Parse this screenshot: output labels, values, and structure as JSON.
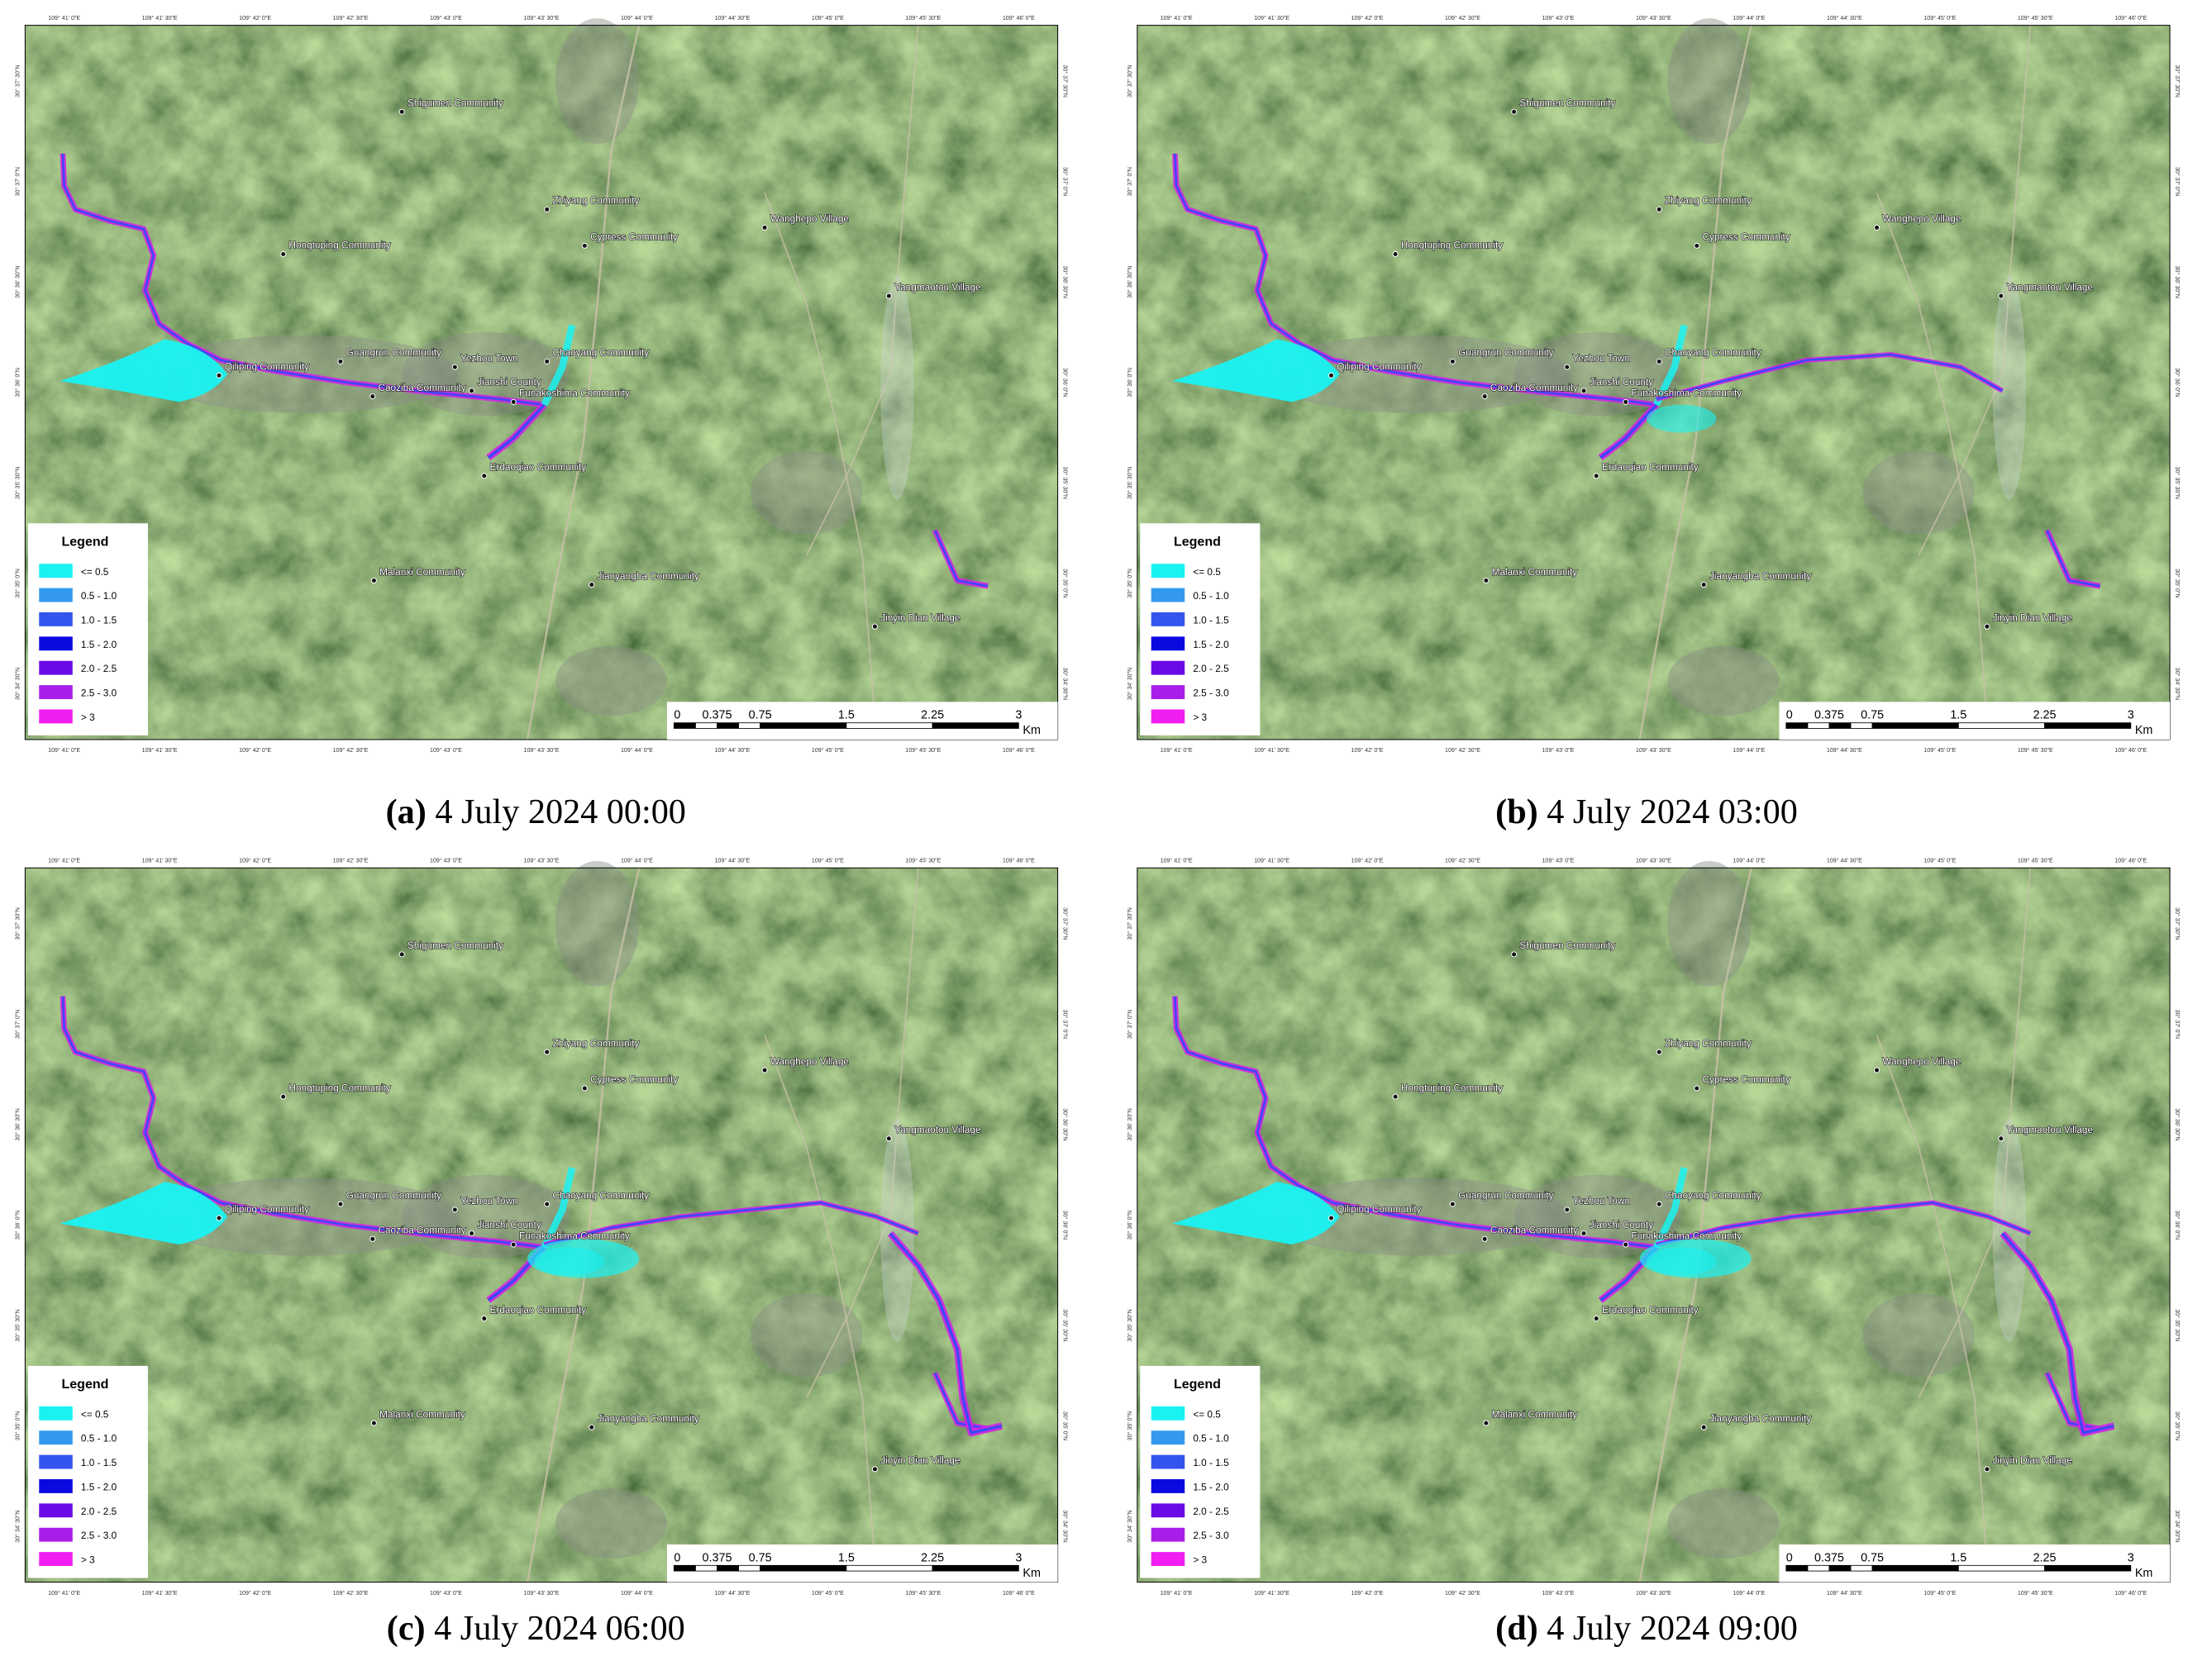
{
  "panels": [
    {
      "label": "(a)",
      "caption": "4 July 2024 00:00"
    },
    {
      "label": "(b)",
      "caption": "4 July 2024 03:00"
    },
    {
      "label": "(c)",
      "caption": "4 July 2024 06:00"
    },
    {
      "label": "(d)",
      "caption": "4 July 2024 09:00"
    }
  ],
  "places": [
    {
      "name": "Shigumen Community"
    },
    {
      "name": "Zhiyang Community"
    },
    {
      "name": "Cypress Community"
    },
    {
      "name": "Wanghepo Village"
    },
    {
      "name": "Hongtuping Community"
    },
    {
      "name": "Yangmaotou Village"
    },
    {
      "name": "Chaoyang Community"
    },
    {
      "name": "Qiliping Community"
    },
    {
      "name": "Guangrun Community"
    },
    {
      "name": "Yezhou Town"
    },
    {
      "name": "Caoziba Community"
    },
    {
      "name": "Jianshi County"
    },
    {
      "name": "Funakoshima Community"
    },
    {
      "name": "Erdaoqiao Community"
    },
    {
      "name": "Malanxi Community"
    },
    {
      "name": "Jianyangba Community"
    },
    {
      "name": "Jinyin Dian Village"
    }
  ],
  "legend": {
    "title": "Legend",
    "items": [
      {
        "label": "<= 0.5",
        "color": "#19f2f2"
      },
      {
        "label": "0.5 - 1.0",
        "color": "#3399ee"
      },
      {
        "label": "1.0 - 1.5",
        "color": "#3355ee"
      },
      {
        "label": "1.5 - 2.0",
        "color": "#0a0ae0"
      },
      {
        "label": "2.0 - 2.5",
        "color": "#6a0ae6"
      },
      {
        "label": "2.5 - 3.0",
        "color": "#a81ee8"
      },
      {
        "label": "> 3",
        "color": "#f01ef0"
      }
    ]
  },
  "scale_bar": {
    "labels": [
      "0",
      "0.375",
      "0.75",
      "1.5",
      "2.25",
      "3"
    ],
    "unit": "Km"
  },
  "lon_labels": [
    "109° 41' 0\"E",
    "109° 41' 30\"E",
    "109° 42' 0\"E",
    "109° 42' 30\"E",
    "109° 43' 0\"E",
    "109° 43' 30\"E",
    "109° 44' 0\"E",
    "109° 44' 30\"E",
    "109° 45' 0\"E",
    "109° 45' 30\"E",
    "109° 46' 0\"E"
  ],
  "lat_labels": [
    "30° 37' 30\"N",
    "30° 37' 0\"N",
    "30° 36' 30\"N",
    "30° 36' 0\"N",
    "30° 35' 30\"N",
    "30° 35' 0\"N",
    "30° 34' 30\"N"
  ]
}
